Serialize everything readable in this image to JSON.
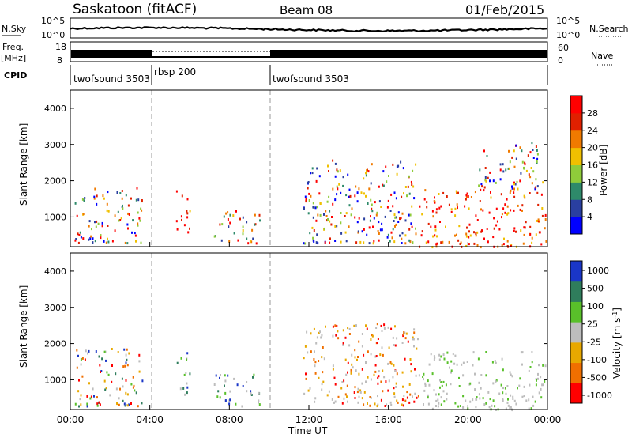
{
  "header": {
    "station": "Saskatoon (fitACF)",
    "beam": "Beam 08",
    "date": "01/Feb/2015"
  },
  "top_panels": {
    "nsky_label": "N.Sky",
    "nsky_ticks_left": [
      "10^5",
      "10^0"
    ],
    "nsearch_label": "N.Search",
    "nsearch_ticks_right": [
      "10^5",
      "10^0"
    ],
    "freq_label": "Freq.",
    "freq_unit": "[MHz]",
    "freq_ticks": [
      "18",
      "8"
    ],
    "nave_label": "Nave",
    "nave_ticks": [
      "60",
      "0"
    ],
    "cpid_label": "CPID",
    "cpid_segments": [
      {
        "name": "twofsound 3503",
        "start_h": 0,
        "end_h": 4
      },
      {
        "name": "rbsp 200",
        "start_h": 4,
        "end_h": 10
      },
      {
        "name": "twofsound 3503",
        "start_h": 10,
        "end_h": 24
      }
    ]
  },
  "chart_data": [
    {
      "type": "heatmap",
      "parameter": "power",
      "ylabel": "Slant Range [km]",
      "xlim_h": [
        0,
        24
      ],
      "ylim_km": [
        180,
        4500
      ],
      "yticks": [
        1000,
        2000,
        3000,
        4000
      ],
      "colorbar": {
        "label": "Power [dB]",
        "ticks": [
          4,
          8,
          12,
          16,
          20,
          24,
          28
        ]
      },
      "echo_regions": [
        {
          "t0": 0.2,
          "t1": 3.6,
          "r0": 300,
          "r1": 1900,
          "level": "mixed"
        },
        {
          "t0": 5.3,
          "t1": 6.0,
          "r0": 600,
          "r1": 1800,
          "level": "high"
        },
        {
          "t0": 7.2,
          "t1": 9.5,
          "r0": 300,
          "r1": 1200,
          "level": "mixed"
        },
        {
          "t0": 11.7,
          "t1": 17.5,
          "r0": 300,
          "r1": 2600,
          "level": "mixed"
        },
        {
          "t0": 17.5,
          "t1": 23.9,
          "r0": 200,
          "r1": 1800,
          "level": "high"
        },
        {
          "t0": 20.5,
          "t1": 23.8,
          "r0": 1800,
          "r1": 3100,
          "level": "mixed"
        }
      ]
    },
    {
      "type": "heatmap",
      "parameter": "velocity",
      "ylabel": "Slant Range [km]",
      "xlim_h": [
        0,
        24
      ],
      "ylim_km": [
        180,
        4500
      ],
      "yticks": [
        1000,
        2000,
        3000,
        4000
      ],
      "colorbar": {
        "label": "Velocity [m s^-1]",
        "ticks": [
          "1000",
          "500",
          "100",
          "25",
          "-25",
          "-100",
          "-500",
          "-1000"
        ]
      },
      "echo_regions": [
        {
          "t0": 0.2,
          "t1": 3.6,
          "r0": 300,
          "r1": 1900,
          "level": "mixed"
        },
        {
          "t0": 5.3,
          "t1": 6.0,
          "r0": 600,
          "r1": 1800,
          "level": "positive"
        },
        {
          "t0": 7.2,
          "t1": 9.5,
          "r0": 300,
          "r1": 1200,
          "level": "positive"
        },
        {
          "t0": 11.7,
          "t1": 17.5,
          "r0": 300,
          "r1": 2600,
          "level": "negative"
        },
        {
          "t0": 17.5,
          "t1": 23.9,
          "r0": 200,
          "r1": 1800,
          "level": "ground"
        }
      ]
    }
  ],
  "xaxis": {
    "ticks": [
      "00:00",
      "04:00",
      "08:00",
      "12:00",
      "16:00",
      "20:00",
      "00:00"
    ],
    "label": "Time UT"
  },
  "colors": {
    "power_scale": [
      "#0000ff",
      "#2a3fa0",
      "#2e8a6a",
      "#8fcc3a",
      "#f0c000",
      "#f07a00",
      "#e02000",
      "#ff0000"
    ],
    "velocity_scale": [
      "#1a36c8",
      "#2f7d5c",
      "#59c02a",
      "#bdbdbd",
      "#e8a800",
      "#f06f00",
      "#ff0000"
    ]
  }
}
